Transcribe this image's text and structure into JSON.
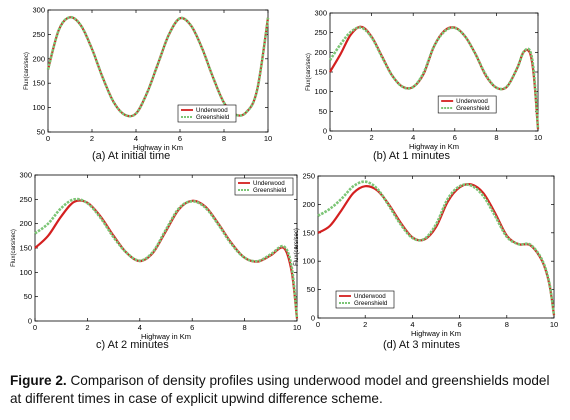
{
  "caption": {
    "label": "Figure 2.",
    "text": "Comparison of density profiles using underwood model and greenshields model at different times in case of explicit upwind difference scheme."
  },
  "colors": {
    "underwood": "#d42020",
    "greenshield": "#7cc576"
  },
  "chart_data": [
    {
      "type": "line",
      "panel_label": "(a)  At initial time",
      "xlabel": "Highway in Km",
      "ylabel": "Flux(cars/sec)",
      "xlim": [
        0,
        10
      ],
      "ylim": [
        50,
        300
      ],
      "xticks": [
        "0",
        "2",
        "4",
        "6",
        "8",
        "10"
      ],
      "yticks": [
        "50",
        "100",
        "150",
        "200",
        "250",
        "300"
      ],
      "legend_position": "lower-right",
      "series": [
        {
          "name": "Underwood",
          "x": [
            0,
            0.5,
            1,
            1.5,
            2,
            2.5,
            3,
            3.5,
            4,
            4.5,
            5,
            5.5,
            6,
            6.5,
            7,
            7.5,
            8,
            8.5,
            9,
            9.5,
            10
          ],
          "values": [
            178,
            260,
            285,
            268,
            220,
            160,
            110,
            85,
            88,
            130,
            190,
            250,
            283,
            268,
            222,
            162,
            110,
            86,
            90,
            135,
            284
          ]
        },
        {
          "name": "Greenshield",
          "x": [
            0,
            0.5,
            1,
            1.5,
            2,
            2.5,
            3,
            3.5,
            4,
            4.5,
            5,
            5.5,
            6,
            6.5,
            7,
            7.5,
            8,
            8.5,
            9,
            9.5,
            10
          ],
          "values": [
            178,
            260,
            285,
            268,
            220,
            160,
            110,
            85,
            88,
            130,
            190,
            250,
            283,
            268,
            222,
            162,
            110,
            86,
            90,
            135,
            284
          ]
        }
      ]
    },
    {
      "type": "line",
      "panel_label": "(b) At 1 minutes",
      "xlabel": "Highway in Km",
      "ylabel": "Flux(cars/sec)",
      "xlim": [
        0,
        10
      ],
      "ylim": [
        0,
        300
      ],
      "xticks": [
        "0",
        "2",
        "4",
        "6",
        "8",
        "10"
      ],
      "yticks": [
        "0",
        "50",
        "100",
        "150",
        "200",
        "250",
        "300"
      ],
      "legend_position": "lower-center",
      "series": [
        {
          "name": "Underwood",
          "x": [
            0,
            0.5,
            1,
            1.5,
            2,
            2.5,
            3,
            3.5,
            4,
            4.5,
            5,
            5.5,
            6,
            6.5,
            7,
            7.5,
            8,
            8.5,
            9,
            9.3,
            9.6,
            9.8,
            10
          ],
          "values": [
            150,
            195,
            245,
            265,
            240,
            190,
            140,
            112,
            112,
            145,
            215,
            255,
            263,
            240,
            195,
            140,
            110,
            112,
            160,
            200,
            200,
            140,
            5
          ]
        },
        {
          "name": "Greenshield",
          "x": [
            0,
            0.5,
            1,
            1.5,
            2,
            2.5,
            3,
            3.5,
            4,
            4.5,
            5,
            5.5,
            6,
            6.5,
            7,
            7.5,
            8,
            8.5,
            9,
            9.3,
            9.6,
            9.8,
            10
          ],
          "values": [
            180,
            220,
            252,
            263,
            238,
            188,
            140,
            112,
            112,
            148,
            215,
            253,
            262,
            240,
            195,
            142,
            110,
            113,
            160,
            200,
            205,
            150,
            5
          ]
        }
      ]
    },
    {
      "type": "line",
      "panel_label": "c) At 2 minutes",
      "xlabel": "Highway in Km",
      "ylabel": "Flux(cars/sec)",
      "xlim": [
        0,
        10
      ],
      "ylim": [
        0,
        300
      ],
      "xticks": [
        "0",
        "2",
        "4",
        "6",
        "8",
        "10"
      ],
      "yticks": [
        "0",
        "50",
        "100",
        "150",
        "200",
        "250",
        "300"
      ],
      "legend_position": "top-right",
      "series": [
        {
          "name": "Underwood",
          "x": [
            0,
            0.5,
            1,
            1.5,
            2,
            2.5,
            3,
            3.5,
            4,
            4.5,
            5,
            5.5,
            6,
            6.5,
            7,
            7.5,
            8,
            8.5,
            9,
            9.5,
            9.8,
            10
          ],
          "values": [
            150,
            175,
            215,
            245,
            243,
            215,
            175,
            140,
            123,
            140,
            185,
            230,
            247,
            235,
            200,
            160,
            130,
            122,
            135,
            150,
            100,
            5
          ]
        },
        {
          "name": "Greenshield",
          "x": [
            0,
            0.5,
            1,
            1.5,
            2,
            2.5,
            3,
            3.5,
            4,
            4.5,
            5,
            5.5,
            6,
            6.5,
            7,
            7.5,
            8,
            8.5,
            9,
            9.5,
            9.8,
            10
          ],
          "values": [
            180,
            200,
            232,
            250,
            242,
            212,
            172,
            140,
            124,
            142,
            188,
            232,
            246,
            233,
            198,
            158,
            130,
            123,
            137,
            153,
            110,
            5
          ]
        }
      ]
    },
    {
      "type": "line",
      "panel_label": "(d) At 3 minutes",
      "xlabel": "Highway in Km",
      "ylabel": "Flux(cars/sec)",
      "xlim": [
        0,
        10
      ],
      "ylim": [
        0,
        250
      ],
      "xticks": [
        "0",
        "2",
        "4",
        "6",
        "8",
        "10"
      ],
      "yticks": [
        "0",
        "50",
        "100",
        "150",
        "200",
        "250"
      ],
      "legend_position": "lower-left",
      "series": [
        {
          "name": "Underwood",
          "x": [
            0,
            0.5,
            1,
            1.5,
            2,
            2.5,
            3,
            3.5,
            4,
            4.5,
            5,
            5.5,
            6,
            6.5,
            7,
            7.5,
            8,
            8.5,
            9,
            9.5,
            9.8,
            10
          ],
          "values": [
            150,
            162,
            190,
            220,
            232,
            225,
            200,
            168,
            142,
            138,
            160,
            205,
            230,
            235,
            220,
            185,
            145,
            130,
            128,
            100,
            60,
            5
          ]
        },
        {
          "name": "Greenshield",
          "x": [
            0,
            0.5,
            1,
            1.5,
            2,
            2.5,
            3,
            3.5,
            4,
            4.5,
            5,
            5.5,
            6,
            6.5,
            7,
            7.5,
            8,
            8.5,
            9,
            9.5,
            9.8,
            10
          ],
          "values": [
            180,
            192,
            210,
            232,
            240,
            228,
            198,
            165,
            141,
            139,
            165,
            210,
            232,
            233,
            215,
            180,
            143,
            130,
            129,
            102,
            62,
            5
          ]
        }
      ]
    }
  ]
}
